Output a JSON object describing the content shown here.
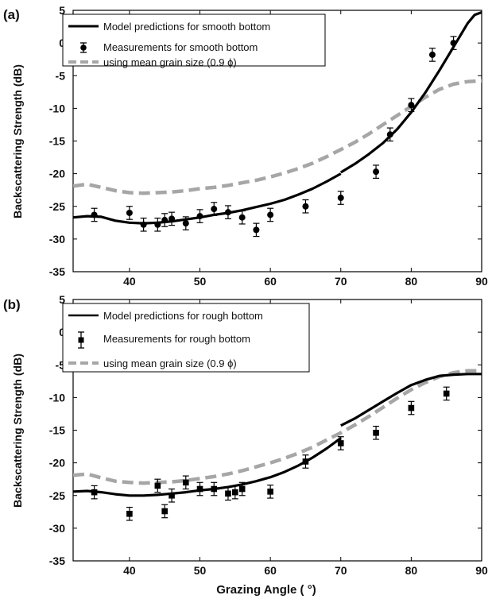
{
  "figure": {
    "xlabel": "Grazing Angle ( °)",
    "ylabel": "Backscattering Strength (dB)"
  },
  "chart_data": [
    {
      "type": "line",
      "panel_label": "(a)",
      "xlabel": "",
      "ylabel": "Backscattering Strength (dB)",
      "xlim": [
        32,
        90
      ],
      "ylim": [
        -35,
        5
      ],
      "xticks": [
        40,
        50,
        60,
        70,
        80,
        90
      ],
      "yticks": [
        -35,
        -30,
        -25,
        -20,
        -15,
        -10,
        -5,
        0,
        5
      ],
      "grid": false,
      "legend_position": "top-left",
      "legend": [
        "Model predictions for smooth bottom",
        "Measurements  for smooth bottom",
        "using mean grain size (0.9 ϕ)"
      ],
      "series": [
        {
          "name": "Model predictions for smooth bottom",
          "style": "line",
          "color": "#000000",
          "x": [
            32,
            34,
            36,
            38,
            40,
            42,
            44,
            46,
            48,
            50,
            52,
            54,
            56,
            58,
            60,
            62,
            64,
            66,
            68,
            70
          ],
          "y": [
            -26.7,
            -26.5,
            -26.6,
            -27.2,
            -27.5,
            -27.6,
            -27.5,
            -27.3,
            -27.0,
            -26.7,
            -26.3,
            -26.0,
            -25.6,
            -25.1,
            -24.6,
            -24.0,
            -23.2,
            -22.3,
            -21.2,
            -20.0
          ]
        },
        {
          "name": "Model predictions for smooth bottom (upper segment)",
          "style": "line",
          "color": "#000000",
          "x": [
            70,
            72,
            74,
            76,
            78,
            80,
            82,
            84,
            86,
            88,
            89,
            90
          ],
          "y": [
            -19.8,
            -18.5,
            -17.0,
            -15.3,
            -13.2,
            -10.6,
            -7.6,
            -4.2,
            -0.6,
            3.0,
            4.3,
            4.7
          ]
        },
        {
          "name": "using mean grain size (0.9 ϕ)",
          "style": "dashed",
          "color": "#a6a6a6",
          "x": [
            32,
            34,
            36,
            38,
            40,
            42,
            44,
            46,
            48,
            50,
            52,
            54,
            56,
            58,
            60,
            62,
            64,
            66,
            68,
            70,
            72,
            74,
            76,
            78,
            80,
            82,
            84,
            86,
            88,
            90
          ],
          "y": [
            -21.9,
            -21.6,
            -22.1,
            -22.6,
            -22.9,
            -23.0,
            -22.9,
            -22.8,
            -22.6,
            -22.3,
            -22.1,
            -21.8,
            -21.4,
            -21.0,
            -20.5,
            -19.9,
            -19.2,
            -18.4,
            -17.4,
            -16.3,
            -15.2,
            -13.9,
            -12.5,
            -11.1,
            -9.7,
            -8.3,
            -7.1,
            -6.3,
            -5.9,
            -5.8
          ]
        },
        {
          "name": "Measurements  for smooth bottom",
          "style": "points",
          "marker": "circle",
          "color": "#000000",
          "x": [
            35,
            40,
            42,
            44,
            45,
            46,
            48,
            50,
            52,
            54,
            56,
            58,
            60,
            65,
            70,
            75,
            77,
            80,
            83,
            86
          ],
          "y": [
            -26.3,
            -26.0,
            -27.8,
            -27.8,
            -27.1,
            -26.9,
            -27.6,
            -26.5,
            -25.4,
            -25.9,
            -26.7,
            -28.6,
            -26.3,
            -25.0,
            -23.7,
            -19.7,
            -14.0,
            -9.5,
            -1.8,
            0.0
          ],
          "err": [
            1.0,
            1.0,
            1.0,
            1.0,
            1.0,
            1.0,
            1.0,
            1.0,
            1.0,
            1.0,
            1.0,
            1.0,
            1.0,
            1.0,
            1.0,
            1.0,
            1.0,
            1.0,
            1.0,
            1.0
          ]
        }
      ]
    },
    {
      "type": "line",
      "panel_label": "(b)",
      "xlabel": "Grazing Angle ( °)",
      "ylabel": "Backscattering Strength (dB)",
      "xlim": [
        32,
        90
      ],
      "ylim": [
        -35,
        5
      ],
      "xticks": [
        40,
        50,
        60,
        70,
        80,
        90
      ],
      "yticks": [
        -35,
        -30,
        -25,
        -20,
        -15,
        -10,
        -5,
        0,
        5
      ],
      "grid": false,
      "legend_position": "top-left",
      "legend": [
        "Model predictions for rough bottom",
        "Measurements  for rough bottom",
        "using mean grain size (0.9 ϕ)"
      ],
      "series": [
        {
          "name": "Model predictions for rough bottom",
          "style": "line",
          "color": "#000000",
          "x": [
            32,
            34,
            36,
            38,
            40,
            42,
            44,
            46,
            48,
            50,
            52,
            54,
            56,
            58,
            60,
            62,
            64,
            66,
            68,
            70
          ],
          "y": [
            -24.4,
            -24.3,
            -24.5,
            -24.8,
            -25.0,
            -25.0,
            -24.9,
            -24.7,
            -24.5,
            -24.2,
            -24.0,
            -23.7,
            -23.3,
            -22.8,
            -22.2,
            -21.4,
            -20.4,
            -19.2,
            -17.8,
            -16.2
          ]
        },
        {
          "name": "Model predictions for rough bottom (upper segment)",
          "style": "line",
          "color": "#000000",
          "x": [
            70,
            72,
            74,
            76,
            78,
            80,
            82,
            84,
            86,
            88,
            90
          ],
          "y": [
            -14.3,
            -13.2,
            -11.9,
            -10.6,
            -9.3,
            -8.1,
            -7.3,
            -6.7,
            -6.5,
            -6.4,
            -6.4
          ]
        },
        {
          "name": "using mean grain size (0.9 ϕ)",
          "style": "dashed",
          "color": "#a6a6a6",
          "x": [
            32,
            34,
            36,
            38,
            40,
            42,
            44,
            46,
            48,
            50,
            52,
            54,
            56,
            58,
            60,
            62,
            64,
            66,
            68,
            70,
            72,
            74,
            76,
            78,
            80,
            82,
            84,
            86,
            88,
            90
          ],
          "y": [
            -21.9,
            -21.7,
            -22.3,
            -22.8,
            -23.0,
            -23.1,
            -23.0,
            -22.9,
            -22.7,
            -22.4,
            -22.1,
            -21.7,
            -21.2,
            -20.6,
            -20.0,
            -19.3,
            -18.5,
            -17.6,
            -16.5,
            -15.4,
            -14.2,
            -12.9,
            -11.5,
            -10.1,
            -8.8,
            -7.7,
            -6.8,
            -6.2,
            -5.9,
            -5.9
          ]
        },
        {
          "name": "Measurements  for rough bottom",
          "style": "points",
          "marker": "square",
          "color": "#000000",
          "x": [
            35,
            40,
            44,
            45,
            46,
            48,
            50,
            52,
            54,
            55,
            56,
            60,
            65,
            70,
            75,
            80,
            85
          ],
          "y": [
            -24.5,
            -27.8,
            -23.5,
            -27.4,
            -25.0,
            -23.0,
            -24.0,
            -24.0,
            -24.7,
            -24.5,
            -24.0,
            -24.4,
            -19.8,
            -17.0,
            -15.4,
            -11.6,
            -9.4
          ],
          "err": [
            1.0,
            1.0,
            1.0,
            1.0,
            1.0,
            1.0,
            1.0,
            1.0,
            1.0,
            1.0,
            1.0,
            1.0,
            1.0,
            1.0,
            1.0,
            1.0,
            1.0
          ]
        }
      ]
    }
  ]
}
